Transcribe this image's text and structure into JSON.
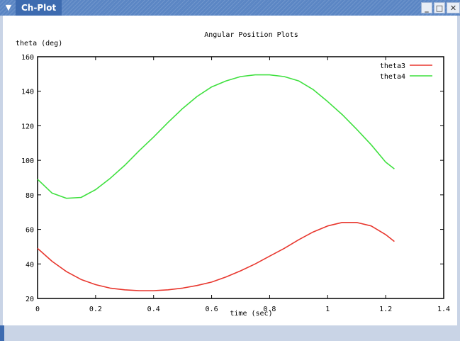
{
  "window": {
    "title": "Ch-Plot",
    "menu_icon": "chevron-down-icon",
    "minimize_icon": "minimize-icon",
    "maximize_icon": "maximize-icon",
    "close_icon": "close-icon"
  },
  "colors": {
    "titlebar": "#5b86c4",
    "theta3": "#e8372e",
    "theta4": "#3fe03f"
  },
  "chart_data": {
    "type": "line",
    "title": "Angular Position Plots",
    "xlabel": "time (sec)",
    "ylabel": "theta (deg)",
    "xlim": [
      0,
      1.4
    ],
    "ylim": [
      20,
      160
    ],
    "xticks": [
      "0",
      "0.2",
      "0.4",
      "0.6",
      "0.8",
      "1",
      "1.2",
      "1.4"
    ],
    "yticks": [
      "20",
      "40",
      "60",
      "80",
      "100",
      "120",
      "140",
      "160"
    ],
    "grid": false,
    "legend_position": "top-right",
    "series": [
      {
        "name": "theta3",
        "color": "#e8372e",
        "x": [
          0,
          0.05,
          0.1,
          0.15,
          0.2,
          0.25,
          0.3,
          0.35,
          0.4,
          0.45,
          0.5,
          0.55,
          0.6,
          0.65,
          0.7,
          0.75,
          0.8,
          0.85,
          0.9,
          0.95,
          1.0,
          1.05,
          1.1,
          1.15,
          1.2,
          1.23
        ],
        "y": [
          49,
          41.5,
          35.5,
          31,
          28,
          26,
          25,
          24.5,
          24.5,
          25,
          26,
          27.5,
          29.5,
          32.5,
          36,
          40,
          44.5,
          49,
          54,
          58.5,
          62,
          64,
          64,
          62,
          57,
          53
        ]
      },
      {
        "name": "theta4",
        "color": "#3fe03f",
        "x": [
          0,
          0.05,
          0.1,
          0.15,
          0.2,
          0.25,
          0.3,
          0.35,
          0.4,
          0.45,
          0.5,
          0.55,
          0.6,
          0.65,
          0.7,
          0.75,
          0.8,
          0.85,
          0.9,
          0.95,
          1.0,
          1.05,
          1.1,
          1.15,
          1.2,
          1.23
        ],
        "y": [
          89,
          81,
          78,
          78.5,
          83,
          89.5,
          97,
          105.5,
          113.5,
          122,
          130,
          137,
          142.5,
          146,
          148.5,
          149.5,
          149.5,
          148.5,
          146,
          141,
          134,
          126.5,
          118,
          109,
          99,
          95
        ]
      }
    ]
  }
}
